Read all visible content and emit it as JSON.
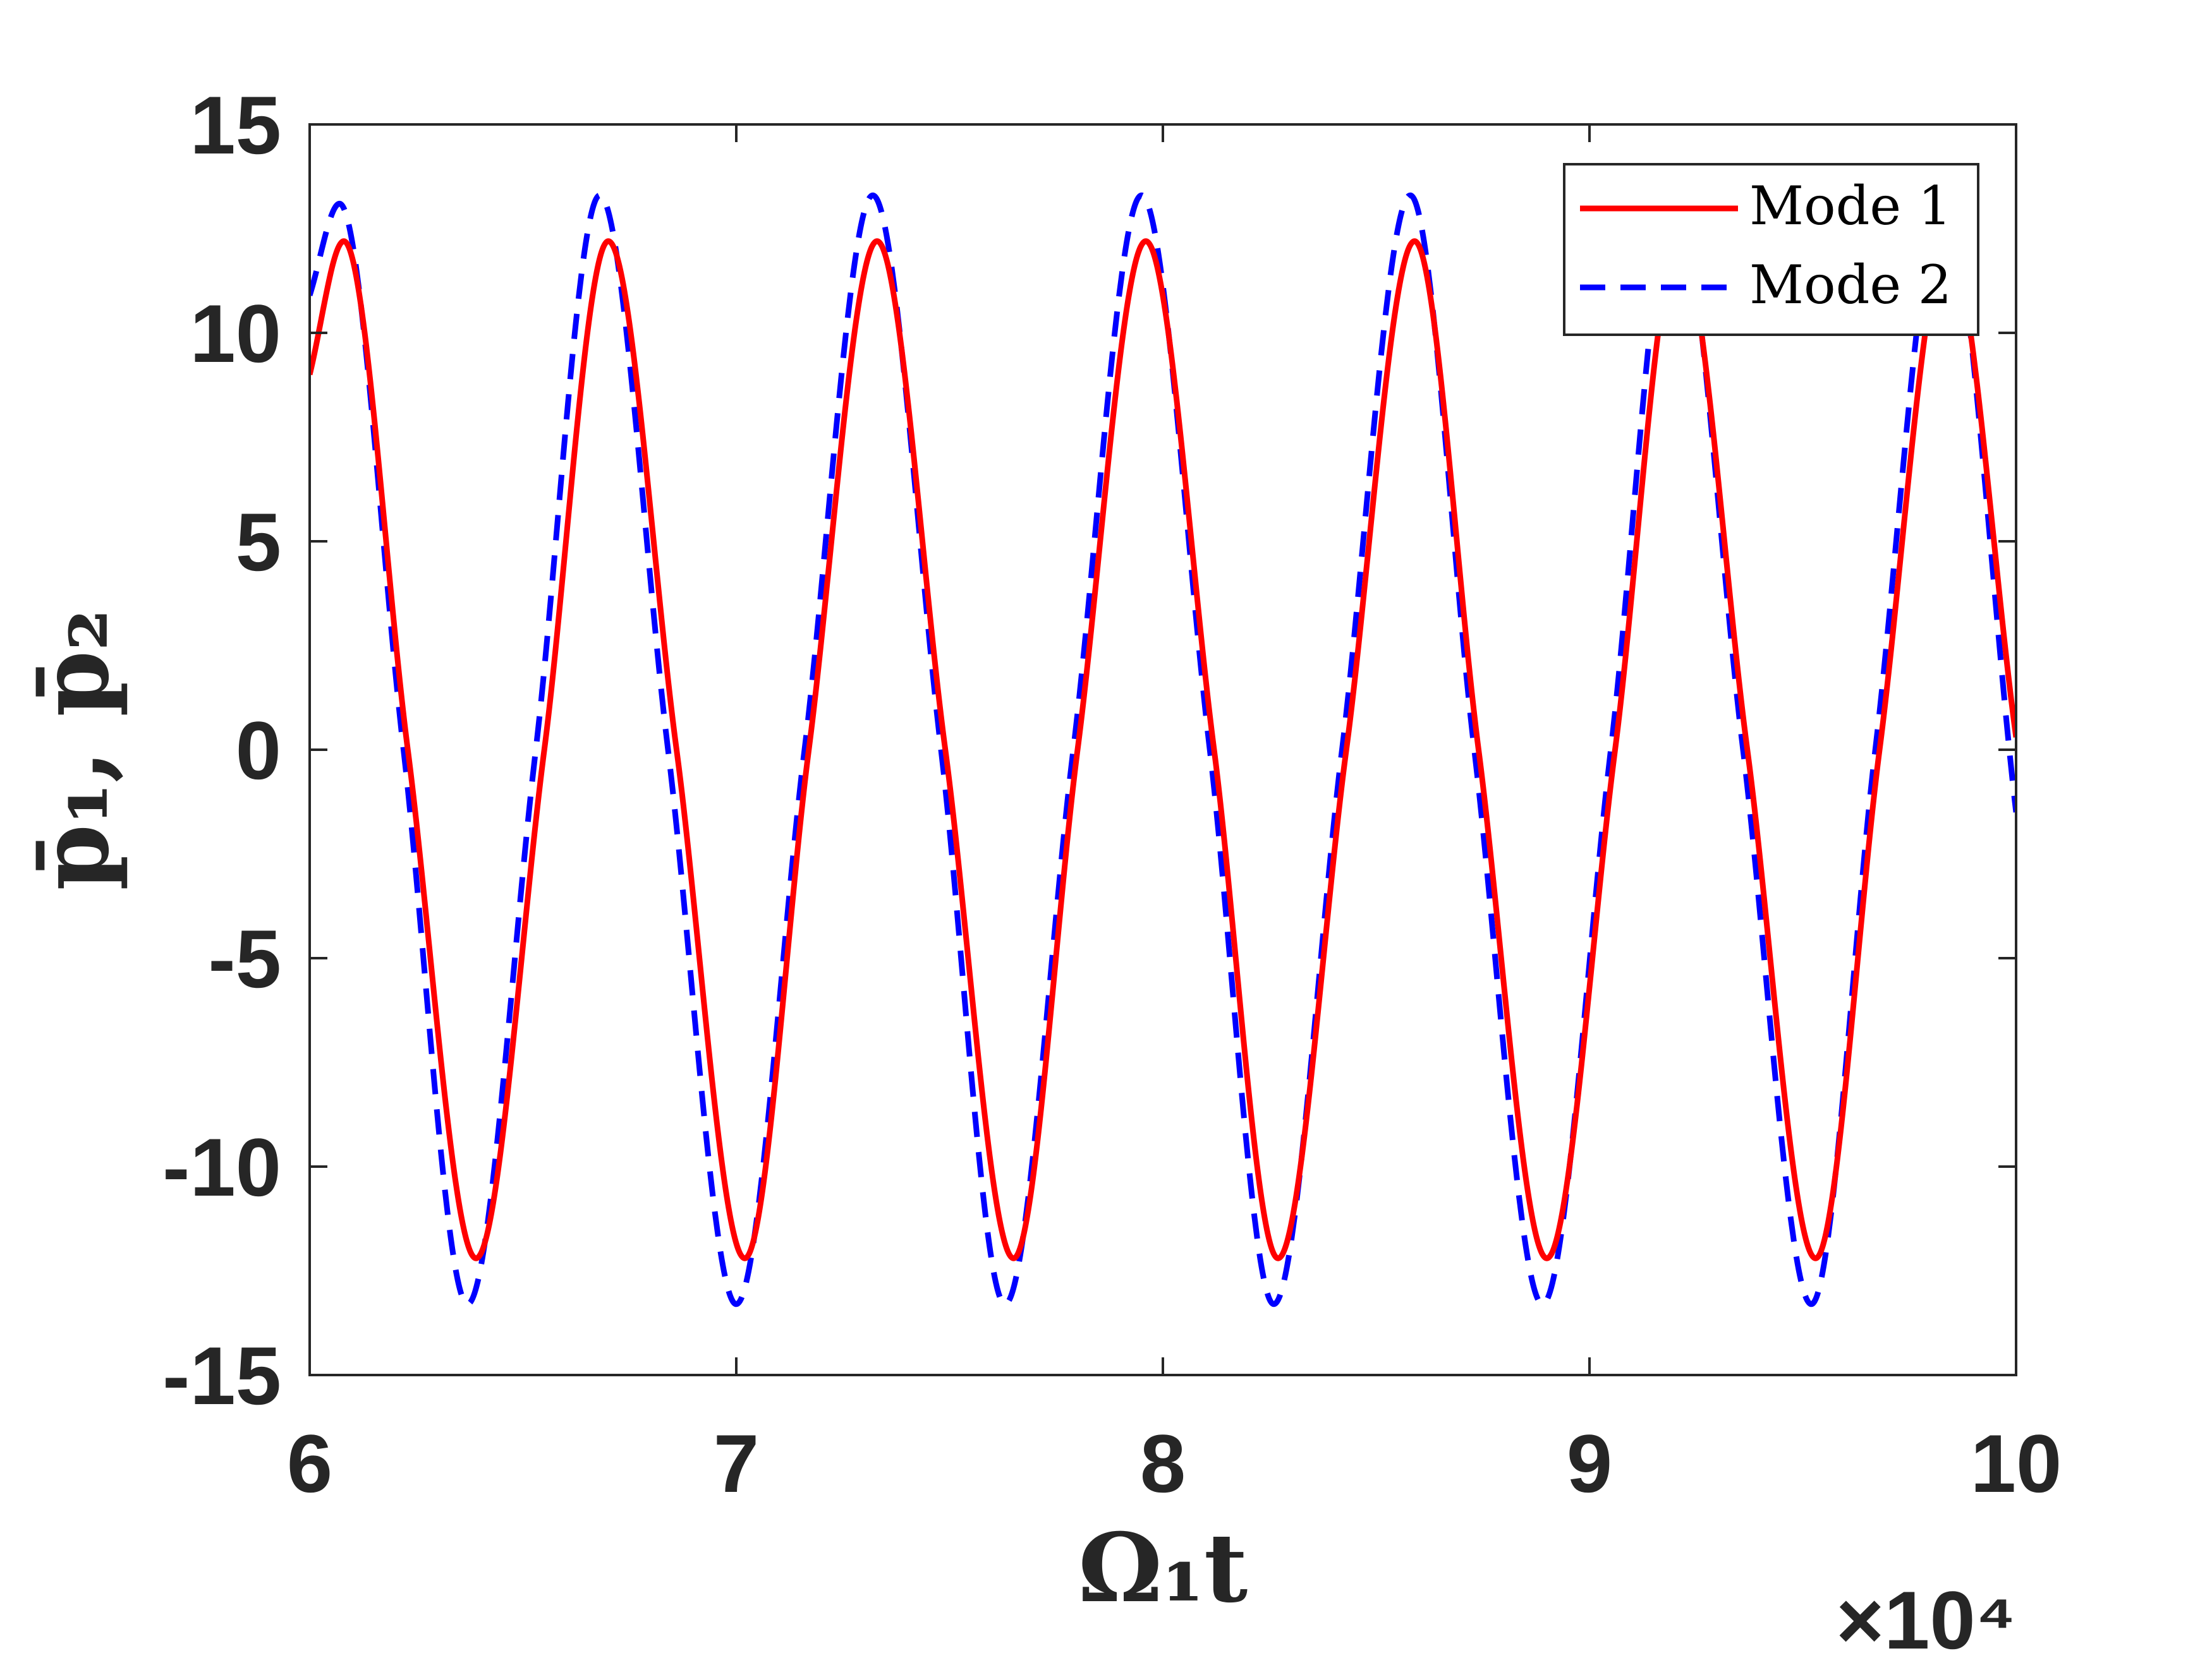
{
  "chart_data": {
    "type": "line",
    "title": "",
    "xlabel": "Ω₁t",
    "ylabel": "p̄₁, p̄₂",
    "x_exponent_label": "×10⁴",
    "xlim": [
      6,
      10
    ],
    "ylim": [
      -15,
      15
    ],
    "xticks": [
      "6",
      "7",
      "8",
      "9",
      "10"
    ],
    "xtick_values": [
      6,
      7,
      8,
      9,
      10
    ],
    "yticks": [
      "15",
      "10",
      "5",
      "0",
      "-5",
      "-10",
      "-15"
    ],
    "ytick_values": [
      15,
      10,
      5,
      0,
      -5,
      -10,
      -15
    ],
    "grid": false,
    "legend_position": "top-right",
    "series": [
      {
        "name": "Mode 1",
        "color": "#ff0000",
        "style": "solid",
        "x": [
          6.0,
          6.08,
          6.23,
          6.39,
          6.55,
          6.7,
          6.86,
          7.02,
          7.17,
          7.33,
          7.49,
          7.65,
          7.8,
          7.96,
          8.12,
          8.27,
          8.43,
          8.59,
          8.74,
          8.9,
          9.06,
          9.21,
          9.37,
          9.53,
          9.68,
          9.84,
          10.0
        ],
        "values": [
          9.0,
          12.2,
          0.0,
          -12.2,
          0.0,
          12.2,
          0.0,
          -12.2,
          0.0,
          12.2,
          0.0,
          -12.2,
          0.0,
          12.2,
          0.0,
          -12.2,
          0.0,
          12.2,
          0.0,
          -12.2,
          0.0,
          12.2,
          0.0,
          -12.2,
          0.0,
          12.2,
          0.3
        ]
      },
      {
        "name": "Mode 2",
        "color": "#0000ff",
        "style": "dashed",
        "x": [
          6.0,
          6.07,
          6.22,
          6.37,
          6.53,
          6.68,
          6.84,
          7.0,
          7.16,
          7.32,
          7.48,
          7.63,
          7.79,
          7.95,
          8.11,
          8.26,
          8.42,
          8.58,
          8.73,
          8.89,
          9.05,
          9.2,
          9.36,
          9.52,
          9.67,
          9.83,
          10.0
        ],
        "values": [
          10.9,
          13.1,
          0.0,
          -13.3,
          0.0,
          13.3,
          0.0,
          -13.3,
          0.0,
          13.3,
          0.0,
          -13.3,
          0.0,
          13.3,
          0.0,
          -13.3,
          0.0,
          13.3,
          0.0,
          -13.3,
          0.0,
          13.3,
          0.0,
          -13.3,
          0.0,
          13.3,
          -1.5
        ]
      }
    ]
  }
}
